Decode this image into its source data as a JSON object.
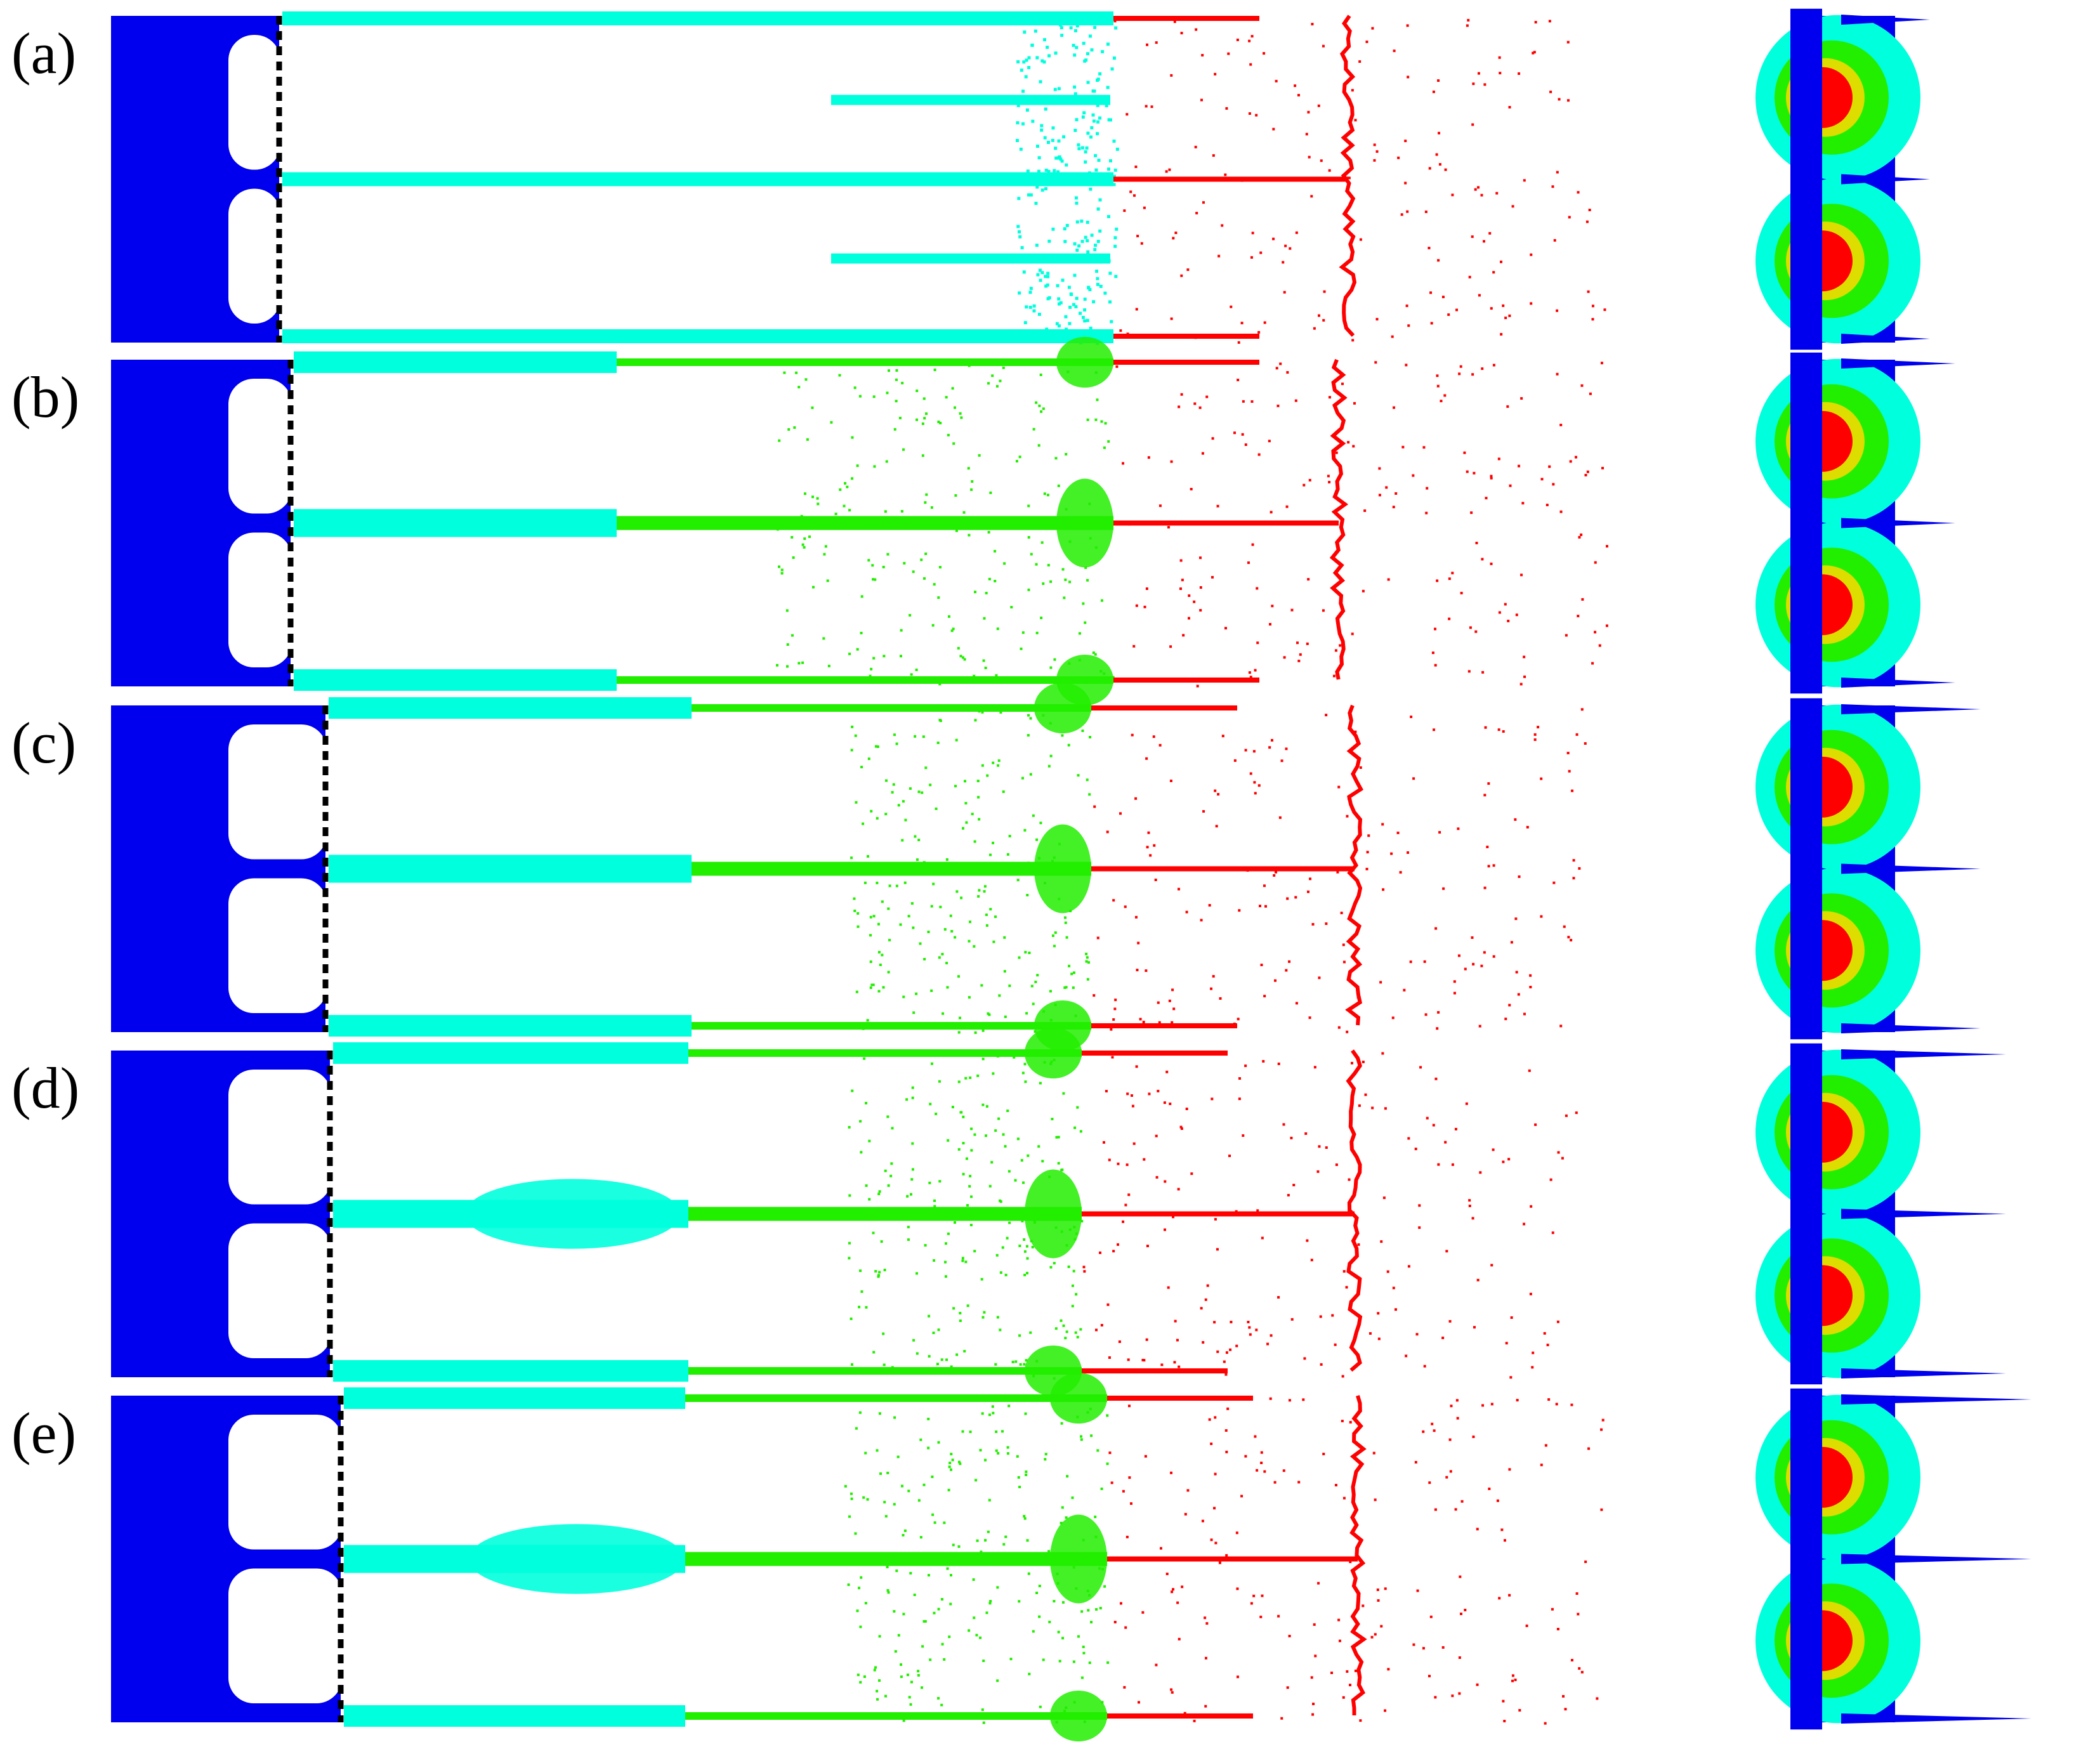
{
  "figure": {
    "panels": [
      {
        "id": "a",
        "label": "(a)",
        "zones": [
          "blue",
          "cyan",
          "red"
        ]
      },
      {
        "id": "b",
        "label": "(b)",
        "zones": [
          "blue",
          "cyan",
          "green",
          "red"
        ]
      },
      {
        "id": "c",
        "label": "(c)",
        "zones": [
          "blue",
          "cyan",
          "green",
          "red"
        ]
      },
      {
        "id": "d",
        "label": "(d)",
        "zones": [
          "blue",
          "cyan",
          "green",
          "red"
        ]
      },
      {
        "id": "e",
        "label": "(e)",
        "zones": [
          "blue",
          "cyan",
          "green",
          "red"
        ]
      }
    ],
    "colors": {
      "blue": "#0000ee",
      "cyan": "#00ffdd",
      "green": "#22ee00",
      "red": "#ff0000",
      "yellow": "#dddd00",
      "boundary": "#000000",
      "background": "#ffffff"
    }
  }
}
